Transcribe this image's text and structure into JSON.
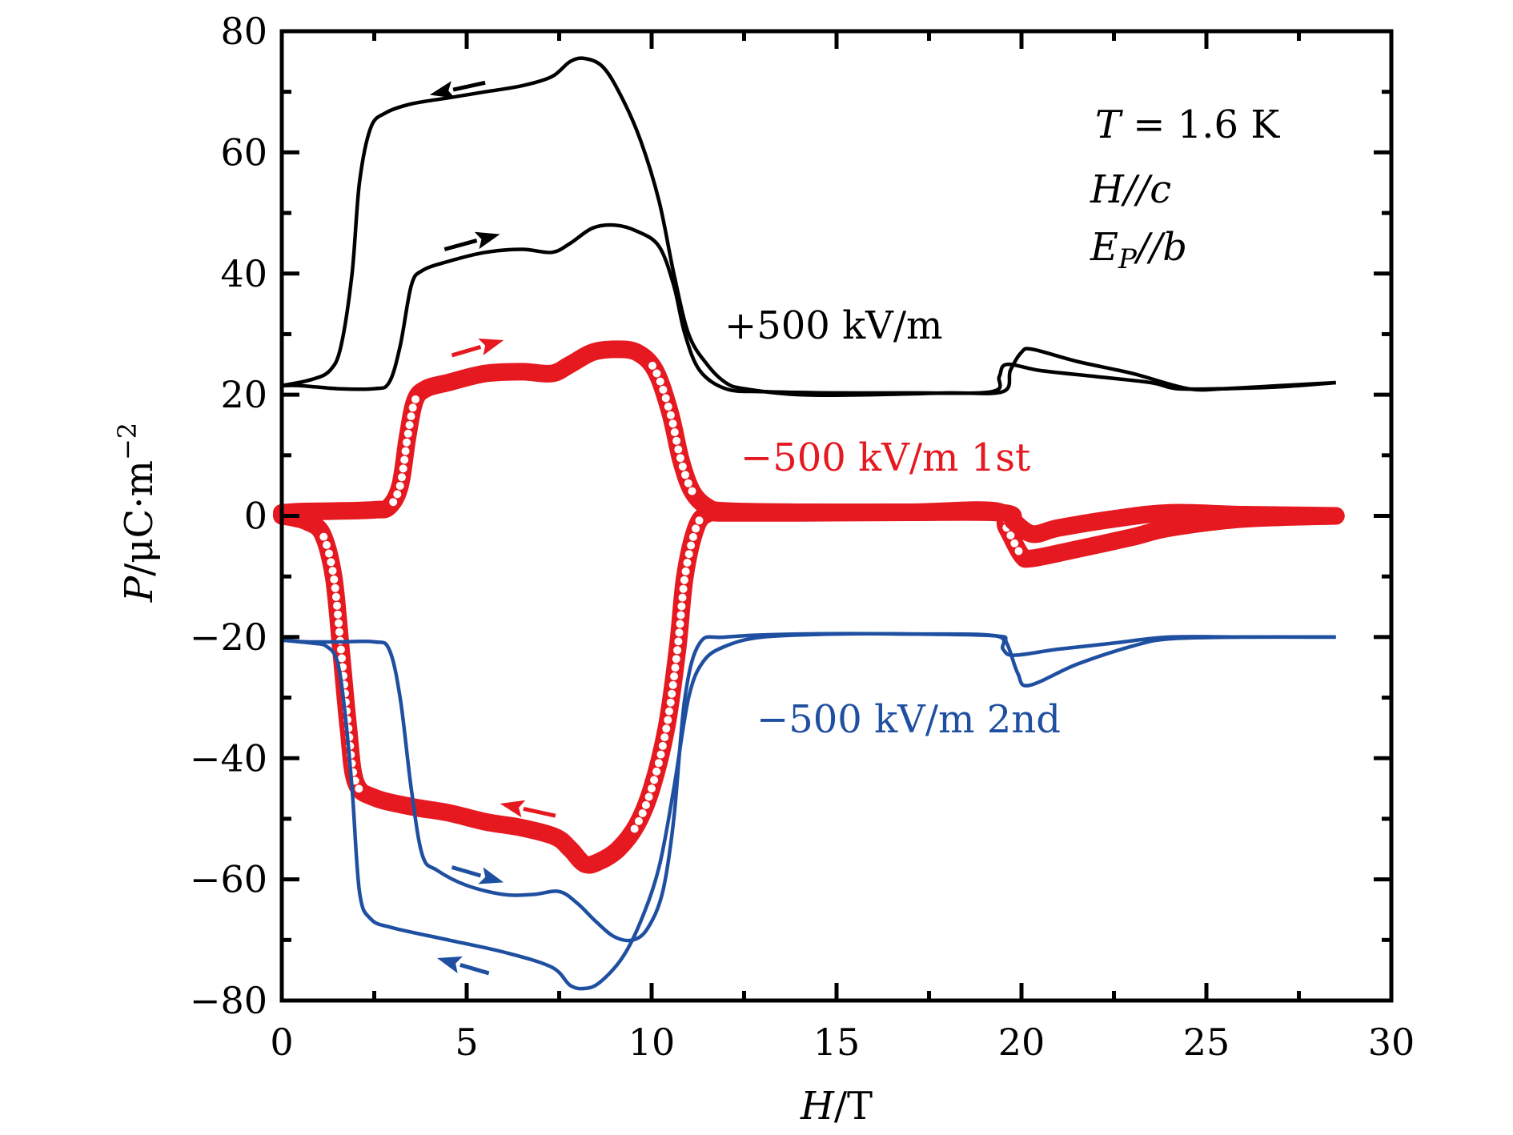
{
  "chart_data": {
    "type": "line",
    "title": "",
    "xlabel": {
      "var": "H",
      "unit": "/T"
    },
    "ylabel": {
      "var": "P",
      "unit": "/μC·m",
      "sup": "−2"
    },
    "xlim": [
      0,
      30
    ],
    "ylim": [
      -80,
      80
    ],
    "grid": false,
    "x_ticks": [
      0,
      5,
      10,
      15,
      20,
      25,
      30
    ],
    "x_tick_labels": [
      "0",
      "5",
      "10",
      "15",
      "20",
      "25",
      "30"
    ],
    "x_minor_ticks": [
      2.5,
      7.5,
      12.5,
      17.5,
      22.5,
      27.5
    ],
    "y_ticks": [
      -80,
      -60,
      -40,
      -20,
      0,
      20,
      40,
      60,
      80
    ],
    "y_tick_labels": [
      "−80",
      "−60",
      "−40",
      "−20",
      "0",
      "20",
      "40",
      "60",
      "80"
    ],
    "y_minor_ticks": [
      -70,
      -50,
      -30,
      -10,
      10,
      30,
      50,
      70
    ],
    "annotations": {
      "temperature": {
        "var": "T",
        "text": " = 1.6 K"
      },
      "field_dir": {
        "var": "H",
        "text": "//",
        "var2": "c"
      },
      "efield_dir": {
        "var": "E",
        "sub": "P",
        "text": "//",
        "var2": "b"
      }
    },
    "series": [
      {
        "name": "+500 kV/m",
        "label": "+500 kV/m",
        "color": "#000000",
        "style": "line",
        "up_sweep": {
          "x": [
            0,
            0.5,
            1.5,
            2.5,
            2.9,
            3.2,
            3.5,
            3.8,
            4.5,
            5.5,
            6.5,
            7.3,
            7.8,
            8.4,
            9.0,
            9.6,
            10.2,
            10.6,
            10.9,
            11.3,
            12.0,
            13.0,
            15.0,
            17.0,
            19.2,
            19.4,
            19.6,
            20.5,
            22.0,
            23.5,
            24.2,
            25.5,
            27.0,
            28.5
          ],
          "y": [
            21.5,
            21.5,
            21.0,
            21.0,
            22.0,
            28.0,
            38.0,
            40.5,
            42.0,
            43.5,
            44.0,
            43.5,
            45.0,
            47.5,
            48.0,
            47.0,
            44.5,
            38.0,
            30.0,
            24.0,
            21.0,
            20.5,
            20.3,
            20.3,
            20.5,
            23.0,
            25.0,
            24.0,
            23.0,
            22.0,
            21.0,
            21.0,
            21.3,
            22.0
          ]
        },
        "down_sweep": {
          "x": [
            28.5,
            27.0,
            25.5,
            24.5,
            23.0,
            21.5,
            20.3,
            20.0,
            19.7,
            19.5,
            18.0,
            16.0,
            14.0,
            12.5,
            12.0,
            11.5,
            11.0,
            10.6,
            10.2,
            9.7,
            9.2,
            8.7,
            8.2,
            7.8,
            7.3,
            6.5,
            5.5,
            4.5,
            3.5,
            2.8,
            2.4,
            2.1,
            1.9,
            1.6,
            1.3,
            0.8,
            0
          ],
          "y": [
            22.0,
            21.5,
            21.0,
            21.0,
            23.5,
            25.5,
            27.5,
            27.0,
            24.0,
            20.5,
            20.3,
            20.0,
            20.0,
            21.0,
            22.0,
            25.0,
            30.0,
            40.0,
            52.0,
            62.0,
            69.0,
            74.0,
            75.5,
            75.0,
            72.5,
            71.0,
            70.0,
            69.0,
            68.0,
            66.5,
            64.0,
            55.0,
            40.0,
            28.0,
            24.0,
            22.5,
            21.5
          ]
        }
      },
      {
        "name": "−500 kV/m 1st",
        "label": "−500 kV/m 1st",
        "color": "#e5191f",
        "style": "circles",
        "up_sweep": {
          "x": [
            0,
            0.5,
            1.5,
            2.5,
            2.9,
            3.2,
            3.4,
            3.6,
            3.9,
            4.5,
            5.5,
            6.5,
            7.3,
            7.8,
            8.4,
            9.0,
            9.6,
            10.1,
            10.5,
            10.8,
            11.1,
            11.5,
            12.0,
            14.0,
            17.0,
            19.3,
            19.6,
            20.0,
            20.3,
            21.5,
            23.0,
            24.0,
            26.0,
            28.5
          ],
          "y": [
            0.5,
            0.7,
            0.8,
            1.0,
            1.5,
            5.0,
            13.0,
            19.0,
            21.0,
            22.0,
            23.5,
            23.8,
            23.5,
            25.0,
            27.0,
            27.5,
            27.0,
            24.0,
            17.0,
            9.0,
            4.0,
            1.5,
            0.8,
            0.6,
            0.6,
            0.8,
            -2.0,
            -6.5,
            -7.0,
            -5.5,
            -3.5,
            -2.0,
            -0.5,
            0.0
          ]
        },
        "down_sweep": {
          "x": [
            28.5,
            26.0,
            24.0,
            22.5,
            21.0,
            20.3,
            19.8,
            19.5,
            17.0,
            14.0,
            12.0,
            11.5,
            11.2,
            10.9,
            10.7,
            10.4,
            10.0,
            9.6,
            9.1,
            8.6,
            8.2,
            7.8,
            7.4,
            6.5,
            5.5,
            4.5,
            3.5,
            2.5,
            2.0,
            1.8,
            1.6,
            1.4,
            1.1,
            0.7,
            0.3,
            0
          ],
          "y": [
            0.0,
            0.2,
            0.5,
            -0.5,
            -2.0,
            -3.0,
            -1.0,
            0.5,
            0.6,
            0.5,
            0.5,
            0.3,
            -2.0,
            -10.0,
            -22.0,
            -35.0,
            -45.0,
            -51.0,
            -55.0,
            -57.0,
            -57.5,
            -55.0,
            -53.0,
            -51.5,
            -50.5,
            -49.0,
            -48.0,
            -46.5,
            -44.0,
            -35.0,
            -22.0,
            -10.0,
            -3.0,
            -1.0,
            -0.3,
            0.0
          ]
        }
      },
      {
        "name": "−500 kV/m 2nd",
        "label": "−500 kV/m 2nd",
        "color": "#1f4fa0",
        "style": "line",
        "up_sweep": {
          "x": [
            0,
            0.7,
            1.5,
            2.5,
            2.9,
            3.2,
            3.5,
            3.8,
            4.2,
            5.0,
            6.0,
            6.8,
            7.5,
            8.0,
            8.5,
            9.0,
            9.5,
            9.9,
            10.3,
            10.6,
            10.9,
            11.3,
            12.0,
            14.0,
            17.0,
            19.3,
            19.5,
            19.8,
            21.0,
            22.5,
            24.0,
            26.0,
            28.5
          ],
          "y": [
            -20.5,
            -20.8,
            -20.8,
            -20.8,
            -22.0,
            -30.0,
            -45.0,
            -56.0,
            -58.5,
            -61.0,
            -62.5,
            -62.5,
            -62.0,
            -64.0,
            -67.0,
            -69.5,
            -70.0,
            -68.0,
            -62.0,
            -50.0,
            -30.0,
            -21.0,
            -20.0,
            -19.5,
            -19.5,
            -19.8,
            -22.0,
            -23.0,
            -22.0,
            -21.0,
            -20.0,
            -20.0,
            -20.0
          ]
        },
        "down_sweep": {
          "x": [
            28.5,
            26.0,
            24.0,
            23.0,
            21.5,
            20.2,
            19.9,
            19.6,
            19.3,
            17.0,
            15.0,
            13.0,
            12.0,
            11.4,
            11.0,
            10.6,
            10.2,
            9.7,
            9.2,
            8.6,
            8.2,
            7.8,
            7.3,
            6.0,
            4.5,
            3.0,
            2.4,
            2.1,
            1.9,
            1.7,
            1.5,
            1.2,
            0.8,
            0
          ],
          "y": [
            -20.0,
            -20.0,
            -20.3,
            -21.5,
            -24.5,
            -28.0,
            -26.0,
            -21.0,
            -19.8,
            -19.5,
            -19.5,
            -20.0,
            -21.5,
            -24.0,
            -30.0,
            -45.0,
            -58.0,
            -67.0,
            -73.0,
            -77.0,
            -78.0,
            -77.5,
            -74.5,
            -72.0,
            -70.0,
            -68.0,
            -66.5,
            -62.0,
            -45.0,
            -32.0,
            -24.0,
            -21.5,
            -21.0,
            -20.5
          ]
        }
      }
    ],
    "arrows": [
      {
        "series": "+500 kV/m",
        "direction": "left",
        "from": [
          5.5,
          71.5
        ],
        "to": [
          4.0,
          69.5
        ]
      },
      {
        "series": "+500 kV/m",
        "direction": "right",
        "from": [
          4.4,
          44.0
        ],
        "to": [
          5.9,
          46.5
        ]
      },
      {
        "series": "−500 kV/m 1st",
        "direction": "right",
        "from": [
          4.6,
          26.5
        ],
        "to": [
          6.0,
          29.0
        ]
      },
      {
        "series": "−500 kV/m 1st",
        "direction": "left",
        "from": [
          7.4,
          -49.5
        ],
        "to": [
          5.9,
          -47.5
        ]
      },
      {
        "series": "−500 kV/m 2nd",
        "direction": "right",
        "from": [
          4.6,
          -58.0
        ],
        "to": [
          6.0,
          -60.5
        ]
      },
      {
        "series": "−500 kV/m 2nd",
        "direction": "left",
        "from": [
          5.6,
          -75.5
        ],
        "to": [
          4.2,
          -73.0
        ]
      }
    ]
  }
}
